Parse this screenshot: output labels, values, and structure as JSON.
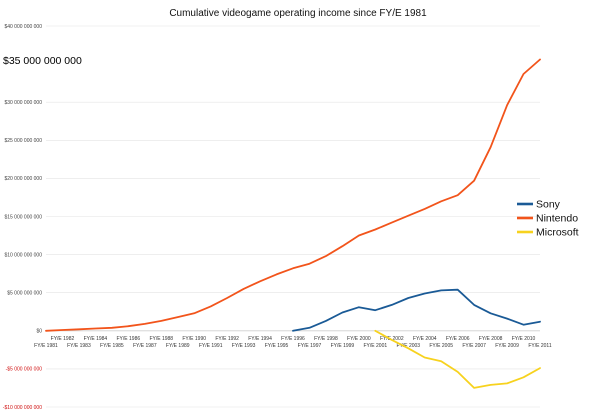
{
  "chart_data": {
    "type": "line",
    "title": "Cumulative videogame operating income since FY/E 1981",
    "annotation": "$35 000 000 000",
    "ylim": [
      -10000000000,
      40000000000
    ],
    "yticks": [
      {
        "value": 40000000000,
        "label": "$40 000 000 000"
      },
      {
        "value": 30000000000,
        "label": "$30 000 000 000"
      },
      {
        "value": 25000000000,
        "label": "$25 000 000 000"
      },
      {
        "value": 20000000000,
        "label": "$20 000 000 000"
      },
      {
        "value": 15000000000,
        "label": "$15 000 000 000"
      },
      {
        "value": 10000000000,
        "label": "$10 000 000 000"
      },
      {
        "value": 5000000000,
        "label": "$5 000 000 000"
      },
      {
        "value": 0,
        "label": "$0"
      },
      {
        "value": -5000000000,
        "label": "-$5 000 000 000"
      },
      {
        "value": -10000000000,
        "label": "-$10 000 000 000"
      }
    ],
    "categories": [
      "FY/E 1981",
      "FY/E 1982",
      "FY/E 1983",
      "FY/E 1984",
      "FY/E 1985",
      "FY/E 1986",
      "FY/E 1987",
      "FY/E 1988",
      "FY/E 1989",
      "FY/E 1990",
      "FY/E 1991",
      "FY/E 1992",
      "FY/E 1993",
      "FY/E 1994",
      "FY/E 1995",
      "FY/E 1996",
      "FY/E 1997",
      "FY/E 1998",
      "FY/E 1999",
      "FY/E 2000",
      "FY/E 2001",
      "FY/E 2002",
      "FY/E 2003",
      "FY/E 2004",
      "FY/E 2005",
      "FY/E 2006",
      "FY/E 2007",
      "FY/E 2008",
      "FY/E 2009",
      "FY/E 2010",
      "FY/E 2011"
    ],
    "legend_position": "right",
    "grid": true,
    "series": [
      {
        "name": "Sony",
        "color": "#1a5a96",
        "values": [
          null,
          null,
          null,
          null,
          null,
          null,
          null,
          null,
          null,
          null,
          null,
          null,
          null,
          null,
          null,
          0,
          400000000,
          1300000000,
          2400000000,
          3100000000,
          2700000000,
          3400000000,
          4300000000,
          4900000000,
          5300000000,
          5400000000,
          3400000000,
          2300000000,
          1600000000,
          800000000,
          1200000000
        ]
      },
      {
        "name": "Nintendo",
        "color": "#f2541b",
        "values": [
          0,
          100000000,
          200000000,
          300000000,
          400000000,
          600000000,
          900000000,
          1300000000,
          1800000000,
          2300000000,
          3200000000,
          4300000000,
          5500000000,
          6500000000,
          7400000000,
          8200000000,
          8800000000,
          9800000000,
          11100000000,
          12500000000,
          13300000000,
          14200000000,
          15100000000,
          16000000000,
          17000000000,
          17800000000,
          19700000000,
          24100000000,
          29600000000,
          33700000000,
          35600000000
        ]
      },
      {
        "name": "Microsoft",
        "color": "#f7d21e",
        "values": [
          null,
          null,
          null,
          null,
          null,
          null,
          null,
          null,
          null,
          null,
          null,
          null,
          null,
          null,
          null,
          null,
          null,
          null,
          null,
          null,
          0,
          -1200000000,
          -2300000000,
          -3500000000,
          -4000000000,
          -5400000000,
          -7500000000,
          -7100000000,
          -6900000000,
          -6100000000,
          -4900000000
        ]
      }
    ]
  }
}
